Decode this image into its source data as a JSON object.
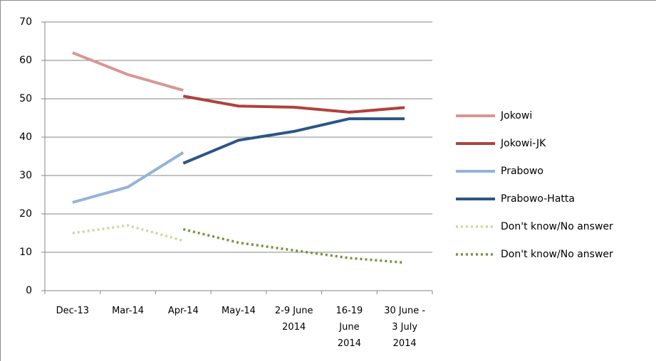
{
  "chart_data": {
    "type": "line",
    "categories": [
      "Dec-13",
      "Mar-14",
      "Apr-14",
      "May-14",
      "2-9 June 2014",
      "16-19 June 2014",
      "30 June - 3 July 2014"
    ],
    "series": [
      {
        "name": "Jokowi",
        "color": "#d99694",
        "style": "solid",
        "values": [
          62,
          56.3,
          52.2,
          null,
          null,
          null,
          null
        ]
      },
      {
        "name": "Jokowi-JK",
        "color": "#b0413e",
        "style": "solid",
        "values": [
          null,
          null,
          50.7,
          48.1,
          47.8,
          46.5,
          47.7
        ]
      },
      {
        "name": "Prabowo",
        "color": "#95b3d7",
        "style": "solid",
        "values": [
          23,
          27,
          36,
          null,
          null,
          null,
          null
        ]
      },
      {
        "name": "Prabowo-Hatta",
        "color": "#2c5586",
        "style": "solid",
        "values": [
          null,
          null,
          33.2,
          39.2,
          41.5,
          44.8,
          44.8
        ]
      },
      {
        "name": "Don't know/No answer",
        "color": "#c8daa3",
        "style": "dotted",
        "values": [
          15,
          17,
          13,
          null,
          null,
          null,
          null
        ]
      },
      {
        "name": "Don't know/No answer",
        "color": "#77933c",
        "style": "dotted",
        "values": [
          null,
          null,
          16,
          12.5,
          10.5,
          8.5,
          7.3
        ]
      }
    ],
    "ylim": [
      0,
      70
    ],
    "yticks": [
      0,
      10,
      20,
      30,
      40,
      50,
      60,
      70
    ],
    "grid": true,
    "legend": "right"
  }
}
